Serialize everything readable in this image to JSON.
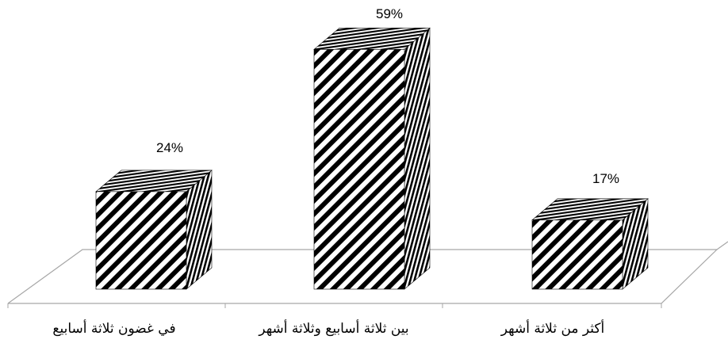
{
  "chart_data": {
    "type": "bar",
    "categories": [
      "في غضون ثلاثة أسابيع",
      "بين ثلاثة أسابيع وثلاثة أشهر",
      "أكثر من ثلاثة أشهر"
    ],
    "values": [
      24,
      59,
      17
    ],
    "data_labels": [
      "24%",
      "59%",
      "17%"
    ],
    "title": "",
    "xlabel": "",
    "ylabel": "",
    "ylim": [
      0,
      60
    ],
    "grid": false,
    "legend": "none",
    "style": "3d-hatched",
    "colors": {
      "bar_fill": "#ffffff",
      "hatch": "#000000",
      "floor": "#a6a6a6"
    }
  }
}
